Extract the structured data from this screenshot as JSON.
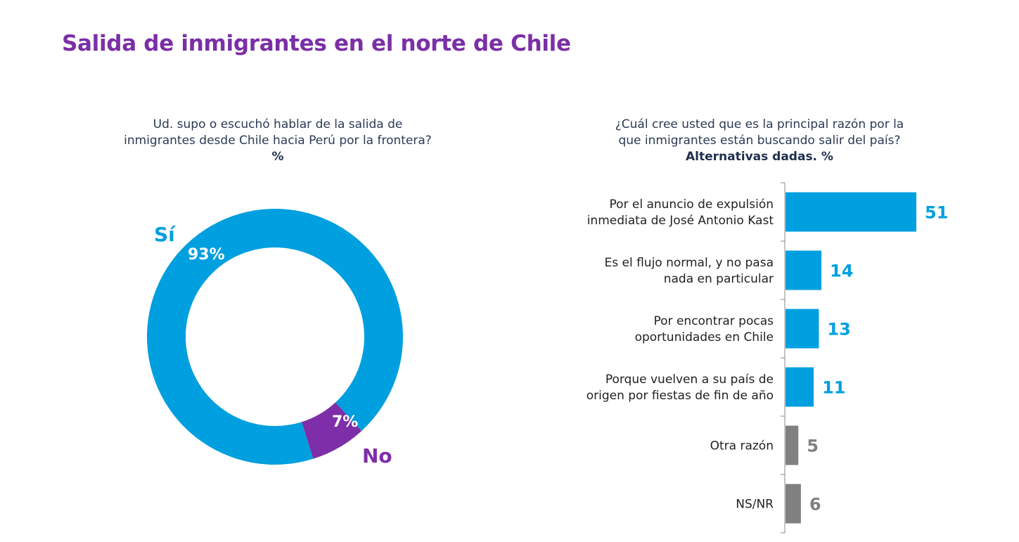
{
  "title": "Salida de inmigrantes en el norte de Chile",
  "left_question": {
    "line1": "Ud. supo o escuchó hablar de la salida de",
    "line2": "inmigrantes desde Chile hacia Perú por la frontera?",
    "unit": "%"
  },
  "right_question": {
    "line1": "¿Cuál cree usted que es la principal razón por la",
    "line2": "que inmigrantes están buscando salir del país?",
    "unit": "Alternativas dadas. %"
  },
  "colors": {
    "title": "#7b2fa6",
    "blue": "#009fdf",
    "purple": "#7e2ea8",
    "gray": "#808080",
    "text": "#2b3a55"
  },
  "chart_data": [
    {
      "type": "pie",
      "variant": "donut",
      "title": "Ud. supo o escuchó hablar de la salida de inmigrantes desde Chile hacia Perú por la frontera? %",
      "slices": [
        {
          "label": "Sí",
          "value": 93,
          "value_label": "93%",
          "color": "#009fdf"
        },
        {
          "label": "No",
          "value": 7,
          "value_label": "7%",
          "color": "#7e2ea8"
        }
      ]
    },
    {
      "type": "bar",
      "orientation": "horizontal",
      "title": "¿Cuál cree usted que es la principal razón por la que inmigrantes están buscando salir del país? Alternativas dadas. %",
      "categories": [
        [
          "Por el anuncio de expulsión",
          "inmediata de José Antonio Kast"
        ],
        [
          "Es el flujo normal, y no pasa",
          "nada en particular"
        ],
        [
          "Por encontrar pocas",
          "oportunidades en Chile"
        ],
        [
          "Porque vuelven a su país de",
          "origen por fiestas de fin de año"
        ],
        [
          "Otra razón"
        ],
        [
          "NS/NR"
        ]
      ],
      "values": [
        51,
        14,
        13,
        11,
        5,
        6
      ],
      "bar_colors": [
        "#009fdf",
        "#009fdf",
        "#009fdf",
        "#009fdf",
        "#808080",
        "#808080"
      ],
      "xlim": [
        0,
        51
      ],
      "grid": false,
      "xlabel": "",
      "ylabel": ""
    }
  ]
}
